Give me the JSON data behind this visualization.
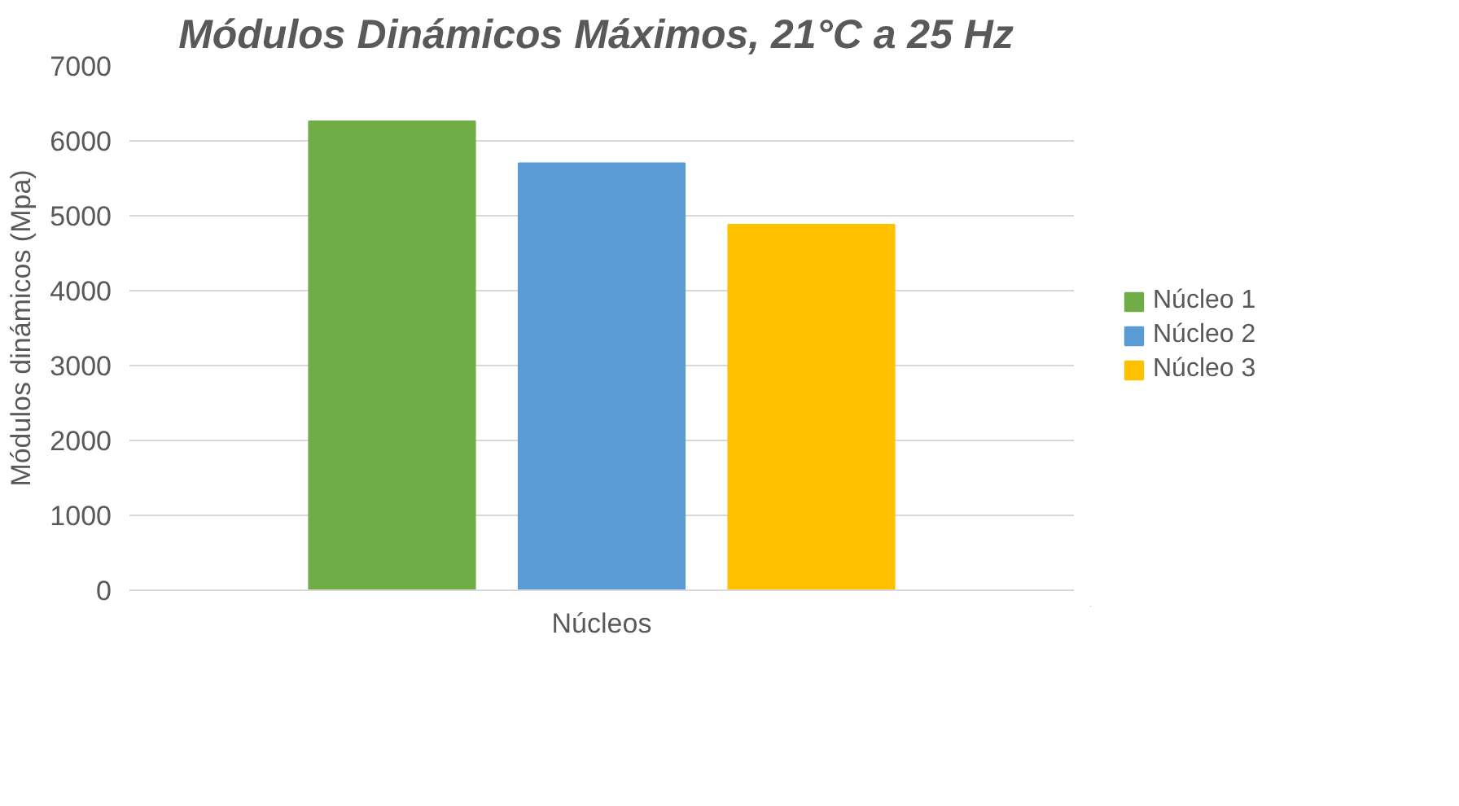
{
  "chart_data": {
    "type": "bar",
    "title": "Módulos Dinámicos Máximos,  21°C a 25 Hz",
    "ylabel": "Módulos dinámicos (Mpa)",
    "categories": [
      "Núcleos"
    ],
    "series": [
      {
        "name": "Núcleo 1",
        "color": "#70ad47",
        "values": [
          6260
        ]
      },
      {
        "name": "Núcleo 2",
        "color": "#5b9bd5",
        "values": [
          5700
        ]
      },
      {
        "name": "Núcleo 3",
        "color": "#ffc000",
        "values": [
          4880
        ]
      }
    ],
    "ylim": [
      0,
      7000
    ],
    "yticks": [
      0,
      1000,
      2000,
      3000,
      4000,
      5000,
      6000,
      7000
    ],
    "grid": "y",
    "legend": "right"
  }
}
